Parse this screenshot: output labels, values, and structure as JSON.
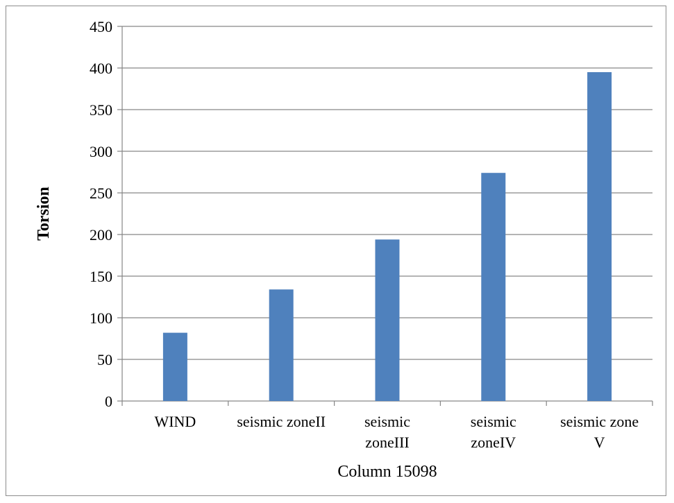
{
  "chart_data": {
    "type": "bar",
    "categories": [
      [
        "WIND"
      ],
      [
        "seismic zoneII"
      ],
      [
        "seismic",
        "zoneIII"
      ],
      [
        "seismic",
        "zoneIV"
      ],
      [
        "seismic zone",
        "V"
      ]
    ],
    "values": [
      82,
      134,
      194,
      274,
      395
    ],
    "xlabel": "Column 15098",
    "ylabel": "Torsion",
    "ylim": [
      0,
      450
    ],
    "yticks": [
      0,
      50,
      100,
      150,
      200,
      250,
      300,
      350,
      400,
      450
    ],
    "grid": true,
    "legend": "none",
    "bar_color": "#4f81bd",
    "grid_color": "#868686"
  }
}
